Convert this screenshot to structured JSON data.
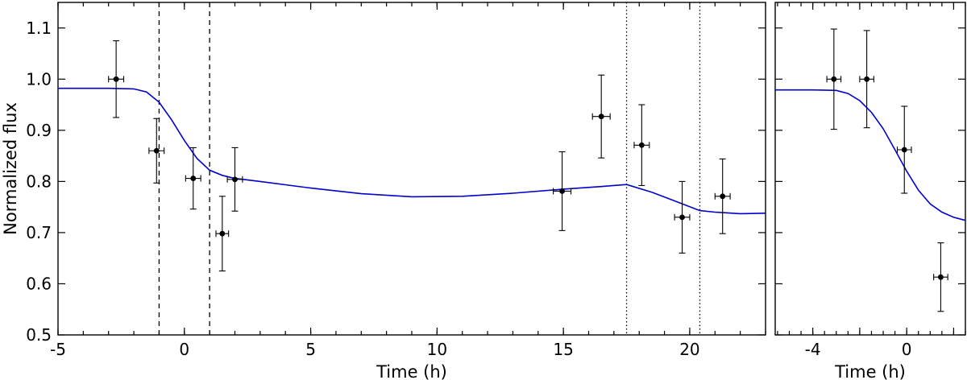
{
  "chart_data": [
    {
      "type": "scatter",
      "xlabel": "Time (h)",
      "ylabel": "Normalized flux",
      "xlim": [
        -5,
        23
      ],
      "ylim": [
        0.5,
        1.15
      ],
      "xticks": [
        -5,
        0,
        5,
        10,
        15,
        20
      ],
      "xtick_labels": [
        "-5",
        "0",
        "5",
        "10",
        "15",
        "20"
      ],
      "yticks": [
        0.5,
        0.6,
        0.7,
        0.8,
        0.9,
        1.0,
        1.1
      ],
      "ytick_labels": [
        "0.5",
        "0.6",
        "0.7",
        "0.8",
        "0.9",
        "1.0",
        "1.1"
      ],
      "grid": false,
      "vlines_dashed": [
        -1.0,
        1.0
      ],
      "vlines_dotted": [
        17.5,
        20.4
      ],
      "points": [
        {
          "x": -2.7,
          "y": 1.0,
          "xerr": 0.3,
          "yerr": 0.075
        },
        {
          "x": -1.1,
          "y": 0.86,
          "xerr": 0.3,
          "yerr": 0.063
        },
        {
          "x": 0.35,
          "y": 0.806,
          "xerr": 0.3,
          "yerr": 0.06
        },
        {
          "x": 1.5,
          "y": 0.698,
          "xerr": 0.25,
          "yerr": 0.073
        },
        {
          "x": 2.0,
          "y": 0.804,
          "xerr": 0.3,
          "yerr": 0.062
        },
        {
          "x": 14.95,
          "y": 0.781,
          "xerr": 0.35,
          "yerr": 0.077
        },
        {
          "x": 16.5,
          "y": 0.927,
          "xerr": 0.35,
          "yerr": 0.081
        },
        {
          "x": 18.1,
          "y": 0.871,
          "xerr": 0.3,
          "yerr": 0.079
        },
        {
          "x": 19.7,
          "y": 0.73,
          "xerr": 0.3,
          "yerr": 0.07
        },
        {
          "x": 21.3,
          "y": 0.771,
          "xerr": 0.3,
          "yerr": 0.073
        }
      ],
      "model": {
        "color": "#0000cc",
        "x": [
          -5,
          -3,
          -2,
          -1.5,
          -1,
          -0.5,
          0,
          0.5,
          1,
          1.5,
          2,
          3,
          5,
          7,
          9,
          11,
          13,
          15,
          16.5,
          17.5,
          18.5,
          19.5,
          20.4,
          21,
          22,
          23
        ],
        "y": [
          0.982,
          0.982,
          0.981,
          0.975,
          0.955,
          0.92,
          0.88,
          0.845,
          0.822,
          0.812,
          0.806,
          0.8,
          0.787,
          0.776,
          0.77,
          0.771,
          0.777,
          0.785,
          0.79,
          0.794,
          0.779,
          0.76,
          0.743,
          0.74,
          0.737,
          0.738
        ]
      }
    },
    {
      "type": "scatter",
      "xlabel": "Time (h)",
      "ylabel": "",
      "xlim": [
        -5.6,
        2.5
      ],
      "ylim": [
        0.5,
        1.15
      ],
      "xticks": [
        -4,
        -2,
        0,
        2
      ],
      "xtick_labels": [
        "-4",
        "",
        "0",
        ""
      ],
      "yticks": [
        0.5,
        0.6,
        0.7,
        0.8,
        0.9,
        1.0,
        1.1
      ],
      "grid": false,
      "points": [
        {
          "x": -3.1,
          "y": 1.0,
          "xerr": 0.3,
          "yerr": 0.098
        },
        {
          "x": -1.7,
          "y": 1.0,
          "xerr": 0.3,
          "yerr": 0.095
        },
        {
          "x": -0.1,
          "y": 0.862,
          "xerr": 0.3,
          "yerr": 0.085
        },
        {
          "x": 1.45,
          "y": 0.613,
          "xerr": 0.3,
          "yerr": 0.067
        }
      ],
      "model": {
        "color": "#0000cc",
        "x": [
          -5.6,
          -4,
          -3,
          -2.5,
          -2,
          -1.5,
          -1,
          -0.5,
          0,
          0.5,
          1,
          1.5,
          2,
          2.5
        ],
        "y": [
          0.979,
          0.979,
          0.978,
          0.972,
          0.958,
          0.935,
          0.903,
          0.862,
          0.82,
          0.783,
          0.756,
          0.74,
          0.73,
          0.724
        ]
      }
    }
  ]
}
